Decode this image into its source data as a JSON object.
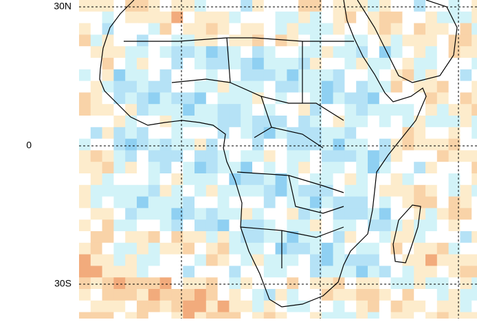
{
  "map": {
    "lat_labels": [
      "30N",
      "0",
      "30S"
    ]
  }
}
